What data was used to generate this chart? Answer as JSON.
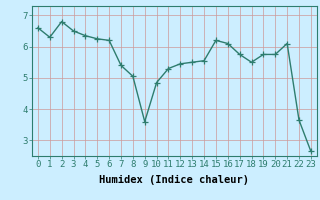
{
  "x": [
    0,
    1,
    2,
    3,
    4,
    5,
    6,
    7,
    8,
    9,
    10,
    11,
    12,
    13,
    14,
    15,
    16,
    17,
    18,
    19,
    20,
    21,
    22,
    23
  ],
  "y": [
    6.6,
    6.3,
    6.8,
    6.5,
    6.35,
    6.25,
    6.2,
    5.4,
    5.05,
    3.6,
    4.85,
    5.3,
    5.45,
    5.5,
    5.55,
    6.2,
    6.1,
    5.75,
    5.5,
    5.75,
    5.75,
    6.1,
    3.65,
    2.65
  ],
  "line_color": "#2e7d6e",
  "marker": "+",
  "marker_size": 4,
  "bg_color": "#cceeff",
  "grid_color": "#cc9999",
  "xlabel": "Humidex (Indice chaleur)",
  "ylim": [
    2.5,
    7.3
  ],
  "xlim": [
    -0.5,
    23.5
  ],
  "yticks": [
    3,
    4,
    5,
    6,
    7
  ],
  "xticks": [
    0,
    1,
    2,
    3,
    4,
    5,
    6,
    7,
    8,
    9,
    10,
    11,
    12,
    13,
    14,
    15,
    16,
    17,
    18,
    19,
    20,
    21,
    22,
    23
  ],
  "xlabel_fontsize": 7.5,
  "tick_fontsize": 6.5,
  "line_width": 1.0
}
